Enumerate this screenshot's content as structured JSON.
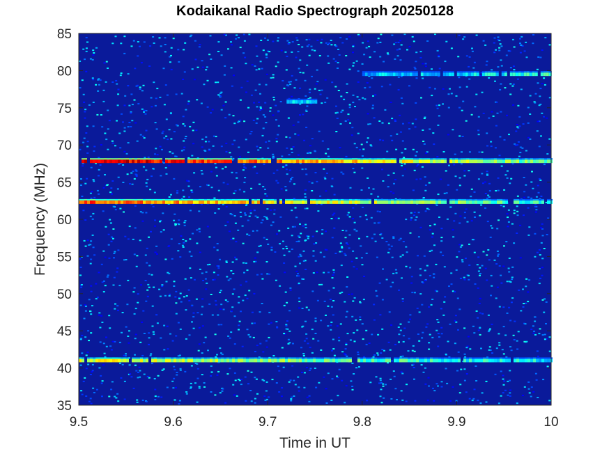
{
  "chart_data": {
    "type": "heatmap",
    "title": "Kodaikanal Radio Spectrograph  20250128",
    "xlabel": "Time in UT",
    "ylabel": "Frequency (MHz)",
    "xlim": [
      9.5,
      10
    ],
    "ylim": [
      35,
      85
    ],
    "x_ticks": [
      9.5,
      9.6,
      9.7,
      9.8,
      9.9,
      10
    ],
    "x_tick_labels": [
      "9.5",
      "9.6",
      "9.7",
      "9.8",
      "9.9",
      "10"
    ],
    "y_ticks": [
      35,
      40,
      45,
      50,
      55,
      60,
      65,
      70,
      75,
      80,
      85
    ],
    "y_tick_labels": [
      "35",
      "40",
      "45",
      "50",
      "55",
      "60",
      "65",
      "70",
      "75",
      "80",
      "85"
    ],
    "colormap": "jet",
    "background_intensity": 0.12,
    "bands": [
      {
        "freq_mhz": 67.8,
        "t_start": 9.5,
        "t_end": 10.0,
        "intensity_start": 0.95,
        "intensity_end": 0.45
      },
      {
        "freq_mhz": 62.3,
        "t_start": 9.5,
        "t_end": 10.0,
        "intensity_start": 0.8,
        "intensity_end": 0.4
      },
      {
        "freq_mhz": 41.0,
        "t_start": 9.5,
        "t_end": 10.0,
        "intensity_start": 0.6,
        "intensity_end": 0.35
      },
      {
        "freq_mhz": 79.5,
        "t_start": 9.8,
        "t_end": 10.0,
        "intensity_start": 0.3,
        "intensity_end": 0.4
      },
      {
        "freq_mhz": 75.8,
        "t_start": 9.72,
        "t_end": 9.75,
        "intensity_start": 0.35,
        "intensity_end": 0.35
      }
    ]
  },
  "colors": {
    "axes_text": "#262626",
    "axes_line": "#262626"
  }
}
